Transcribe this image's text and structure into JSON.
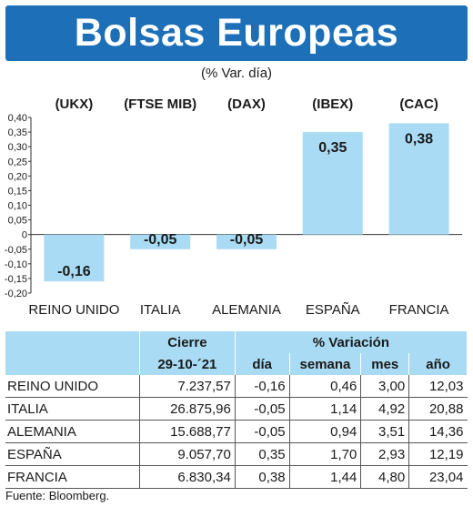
{
  "header": {
    "title": "Bolsas Europeas",
    "subtitle": "(% Var. día)"
  },
  "chart_data": {
    "type": "bar",
    "indices": [
      "(UKX)",
      "(FTSE MIB)",
      "(DAX)",
      "(IBEX)",
      "(CAC)"
    ],
    "categories": [
      "REINO UNIDO",
      "ITALIA",
      "ALEMANIA",
      "ESPAÑA",
      "FRANCIA"
    ],
    "values": [
      -0.16,
      -0.05,
      -0.05,
      0.35,
      0.38
    ],
    "value_labels": [
      "-0,16",
      "-0,05",
      "-0,05",
      "0,35",
      "0,38"
    ],
    "ylim": [
      -0.2,
      0.4
    ],
    "yticks": [
      "0,40",
      "0,35",
      "0,30",
      "0,25",
      "0,20",
      "0,15",
      "0,10",
      "0,05",
      "0",
      "-0,05",
      "-0,10",
      "-0,15",
      "-0,20"
    ],
    "bar_color": "#a9dcf4",
    "grid": false
  },
  "table": {
    "group_headers": [
      "Cierre",
      "% Variación"
    ],
    "sub_headers": [
      "29-10-´21",
      "día",
      "semana",
      "mes",
      "año"
    ],
    "rows": [
      {
        "name": "REINO UNIDO",
        "cierre": "7.237,57",
        "dia": "-0,16",
        "semana": "0,46",
        "mes": "3,00",
        "ano": "12,03"
      },
      {
        "name": "ITALIA",
        "cierre": "26.875,96",
        "dia": "-0,05",
        "semana": "1,14",
        "mes": "4,92",
        "ano": "20,88"
      },
      {
        "name": "ALEMANIA",
        "cierre": "15.688,77",
        "dia": "-0,05",
        "semana": "0,94",
        "mes": "3,51",
        "ano": "14,36"
      },
      {
        "name": "ESPAÑA",
        "cierre": "9.057,70",
        "dia": "0,35",
        "semana": "1,70",
        "mes": "2,93",
        "ano": "12,19"
      },
      {
        "name": "FRANCIA",
        "cierre": "6.830,34",
        "dia": "0,38",
        "semana": "1,44",
        "mes": "4,80",
        "ano": "23,04"
      }
    ]
  },
  "footer": {
    "source": "Fuente: Bloomberg."
  },
  "colors": {
    "banner": "#1d70b8",
    "bars": "#a9dcf4",
    "table_header": "#a9dcf4"
  }
}
